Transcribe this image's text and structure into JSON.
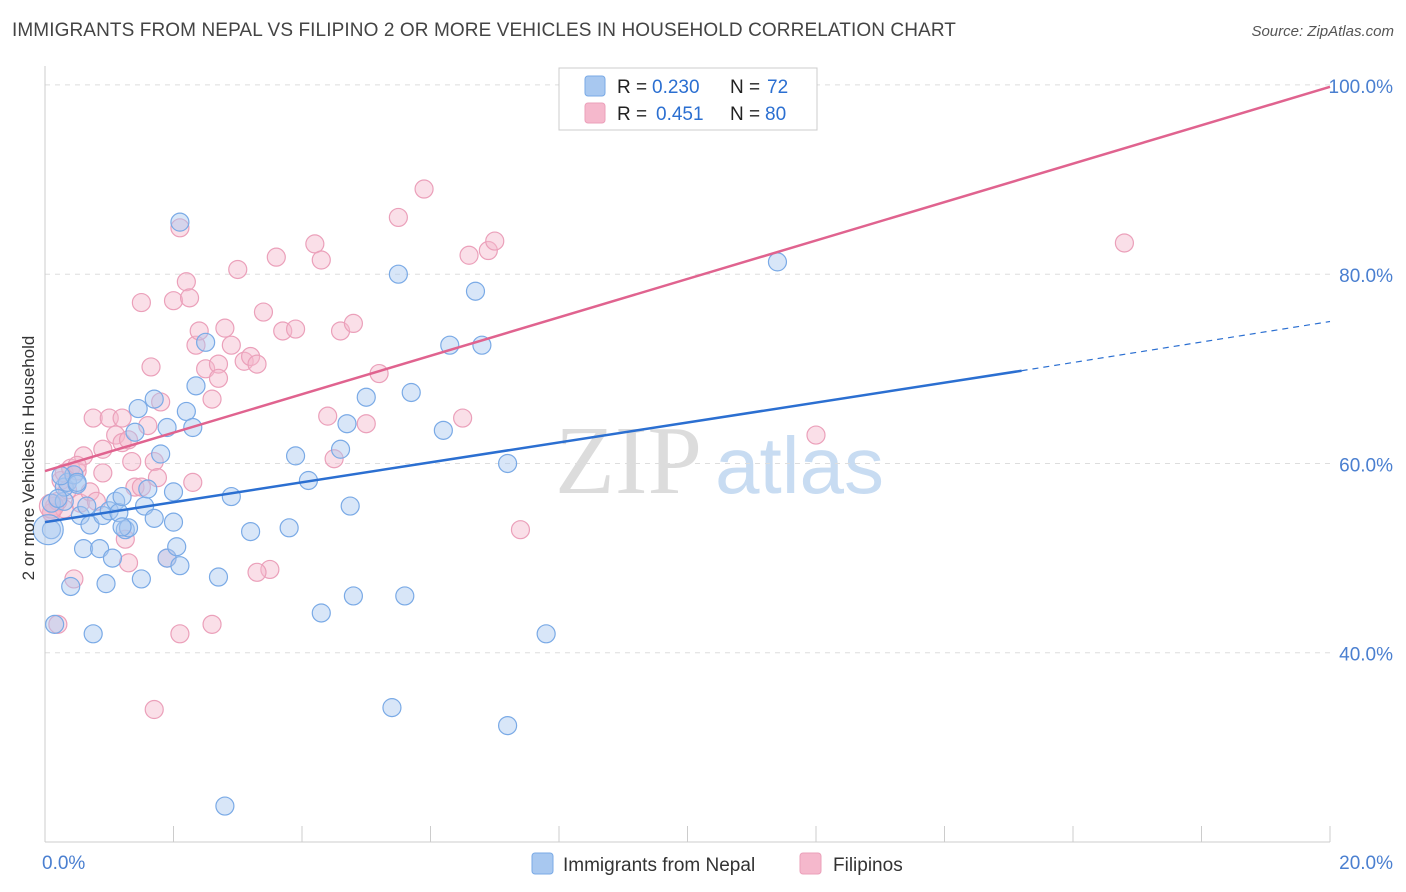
{
  "title": "IMMIGRANTS FROM NEPAL VS FILIPINO 2 OR MORE VEHICLES IN HOUSEHOLD CORRELATION CHART",
  "source": "Source: ZipAtlas.com",
  "watermark": {
    "zip": "ZIP",
    "atlas": "atlas"
  },
  "colors": {
    "blue_fill": "#a8c8f0",
    "blue_stroke": "#7aaae6",
    "blue_line": "#2b6fd1",
    "pink_fill": "#f5b8cc",
    "pink_stroke": "#eba0ba",
    "pink_line": "#e0638f",
    "axis_text": "#4a7fd0",
    "grid": "#dddddd"
  },
  "legend": {
    "rows": [
      {
        "r_label": "R =",
        "r_value": "0.230",
        "n_label": "N =",
        "n_value": "72"
      },
      {
        "r_label": "R =",
        "r_value": "0.451",
        "n_label": "N =",
        "n_value": "80"
      }
    ]
  },
  "bottom_legend": [
    {
      "label": "Immigrants from Nepal"
    },
    {
      "label": "Filipinos"
    }
  ],
  "chart_data": {
    "type": "scatter",
    "title": "IMMIGRANTS FROM NEPAL VS FILIPINO 2 OR MORE VEHICLES IN HOUSEHOLD CORRELATION CHART",
    "xlabel": "",
    "ylabel": "2 or more Vehicles in Household",
    "xlim": [
      0,
      20
    ],
    "ylim": [
      20,
      102
    ],
    "x_tick_labels": [
      "0.0%",
      "20.0%"
    ],
    "y_ticks": [
      40,
      60,
      80,
      100
    ],
    "y_tick_labels": [
      "40.0%",
      "60.0%",
      "80.0%",
      "100.0%"
    ],
    "grid": true,
    "legend_position": "top-center",
    "series": [
      {
        "name": "Immigrants from Nepal",
        "color": "#a8c8f0",
        "trend": {
          "x": [
            0,
            15.2
          ],
          "y": [
            53.8,
            69.8
          ],
          "dashed_to": [
            20,
            75.0
          ]
        },
        "points": [
          [
            0.1,
            55.8
          ],
          [
            0.1,
            53.0
          ],
          [
            0.15,
            43.0
          ],
          [
            0.3,
            56.0
          ],
          [
            0.3,
            57.5
          ],
          [
            0.35,
            58.0
          ],
          [
            0.4,
            47.0
          ],
          [
            0.45,
            58.8
          ],
          [
            0.5,
            57.8
          ],
          [
            0.55,
            54.5
          ],
          [
            0.6,
            51.0
          ],
          [
            0.65,
            55.5
          ],
          [
            0.7,
            53.5
          ],
          [
            0.75,
            42.0
          ],
          [
            0.85,
            51.0
          ],
          [
            0.9,
            54.5
          ],
          [
            0.95,
            47.3
          ],
          [
            1.0,
            55.0
          ],
          [
            1.05,
            50.0
          ],
          [
            1.1,
            56.0
          ],
          [
            1.15,
            54.8
          ],
          [
            1.2,
            56.5
          ],
          [
            1.25,
            53.0
          ],
          [
            1.3,
            53.2
          ],
          [
            1.4,
            63.3
          ],
          [
            1.45,
            65.8
          ],
          [
            1.5,
            47.8
          ],
          [
            1.55,
            55.5
          ],
          [
            1.6,
            57.3
          ],
          [
            1.7,
            54.2
          ],
          [
            1.8,
            61.0
          ],
          [
            1.9,
            50.0
          ],
          [
            2.0,
            53.8
          ],
          [
            2.05,
            51.2
          ],
          [
            2.1,
            49.2
          ],
          [
            2.2,
            65.5
          ],
          [
            2.3,
            63.8
          ],
          [
            2.35,
            68.2
          ],
          [
            2.5,
            72.8
          ],
          [
            2.7,
            48.0
          ],
          [
            2.9,
            56.5
          ],
          [
            3.2,
            52.8
          ],
          [
            3.8,
            53.2
          ],
          [
            3.9,
            60.8
          ],
          [
            4.1,
            58.2
          ],
          [
            4.3,
            44.2
          ],
          [
            4.6,
            61.5
          ],
          [
            4.7,
            64.2
          ],
          [
            4.75,
            55.5
          ],
          [
            4.8,
            46.0
          ],
          [
            5.0,
            67.0
          ],
          [
            5.4,
            34.2
          ],
          [
            5.5,
            80.0
          ],
          [
            5.6,
            46.0
          ],
          [
            5.7,
            67.5
          ],
          [
            6.2,
            63.5
          ],
          [
            6.3,
            72.5
          ],
          [
            6.7,
            78.2
          ],
          [
            6.8,
            72.5
          ],
          [
            7.2,
            60.0
          ],
          [
            7.8,
            42.0
          ],
          [
            7.2,
            32.3
          ],
          [
            11.4,
            81.3
          ],
          [
            2.8,
            23.8
          ],
          [
            2.1,
            85.5
          ],
          [
            1.7,
            66.8
          ],
          [
            0.2,
            56.3
          ],
          [
            0.25,
            58.7
          ],
          [
            0.5,
            58.0
          ],
          [
            1.2,
            53.3
          ],
          [
            1.9,
            63.8
          ],
          [
            2.0,
            57.0
          ]
        ]
      },
      {
        "name": "Filipinos",
        "color": "#f5b8cc",
        "trend": {
          "x": [
            0,
            20
          ],
          "y": [
            59.2,
            99.8
          ]
        },
        "points": [
          [
            0.1,
            54.8
          ],
          [
            0.15,
            55.5
          ],
          [
            0.2,
            43.0
          ],
          [
            0.25,
            58.2
          ],
          [
            0.3,
            59.0
          ],
          [
            0.4,
            59.5
          ],
          [
            0.45,
            47.8
          ],
          [
            0.5,
            59.2
          ],
          [
            0.55,
            55.8
          ],
          [
            0.6,
            60.8
          ],
          [
            0.7,
            57.0
          ],
          [
            0.75,
            64.8
          ],
          [
            0.8,
            56.0
          ],
          [
            0.9,
            59.0
          ],
          [
            1.0,
            64.8
          ],
          [
            1.1,
            63.0
          ],
          [
            1.2,
            62.2
          ],
          [
            1.25,
            52.0
          ],
          [
            1.3,
            62.5
          ],
          [
            1.4,
            57.5
          ],
          [
            1.5,
            77.0
          ],
          [
            1.6,
            64.0
          ],
          [
            1.7,
            60.2
          ],
          [
            1.75,
            58.5
          ],
          [
            1.8,
            66.5
          ],
          [
            1.9,
            50.0
          ],
          [
            2.0,
            77.2
          ],
          [
            2.1,
            42.0
          ],
          [
            2.2,
            79.2
          ],
          [
            2.25,
            77.5
          ],
          [
            2.35,
            72.5
          ],
          [
            2.4,
            74.0
          ],
          [
            2.5,
            70.0
          ],
          [
            2.6,
            66.8
          ],
          [
            2.7,
            70.5
          ],
          [
            2.8,
            74.3
          ],
          [
            2.9,
            72.5
          ],
          [
            3.0,
            80.5
          ],
          [
            3.1,
            70.8
          ],
          [
            3.2,
            71.3
          ],
          [
            3.4,
            76.0
          ],
          [
            3.5,
            48.8
          ],
          [
            3.6,
            81.8
          ],
          [
            3.7,
            74.0
          ],
          [
            3.9,
            74.2
          ],
          [
            4.2,
            83.2
          ],
          [
            4.3,
            81.5
          ],
          [
            4.4,
            65.0
          ],
          [
            4.5,
            60.5
          ],
          [
            4.6,
            74.0
          ],
          [
            4.8,
            74.8
          ],
          [
            5.0,
            64.2
          ],
          [
            5.2,
            69.5
          ],
          [
            5.5,
            86.0
          ],
          [
            5.9,
            89.0
          ],
          [
            6.5,
            64.8
          ],
          [
            6.6,
            82.0
          ],
          [
            6.9,
            82.5
          ],
          [
            7.0,
            83.5
          ],
          [
            7.4,
            53.0
          ],
          [
            1.7,
            34.0
          ],
          [
            1.65,
            70.2
          ],
          [
            2.6,
            43.0
          ],
          [
            3.3,
            48.5
          ],
          [
            12.0,
            63.0
          ],
          [
            16.8,
            83.3
          ],
          [
            2.1,
            84.9
          ],
          [
            0.1,
            54.8
          ],
          [
            0.3,
            55.2
          ],
          [
            0.5,
            59.8
          ],
          [
            0.9,
            61.5
          ],
          [
            1.2,
            64.8
          ],
          [
            1.35,
            60.2
          ],
          [
            1.5,
            57.5
          ],
          [
            1.3,
            49.5
          ],
          [
            2.3,
            58.0
          ],
          [
            2.7,
            69.0
          ],
          [
            3.3,
            70.5
          ],
          [
            0.2,
            56.0
          ],
          [
            0.35,
            57.2
          ]
        ]
      }
    ]
  }
}
